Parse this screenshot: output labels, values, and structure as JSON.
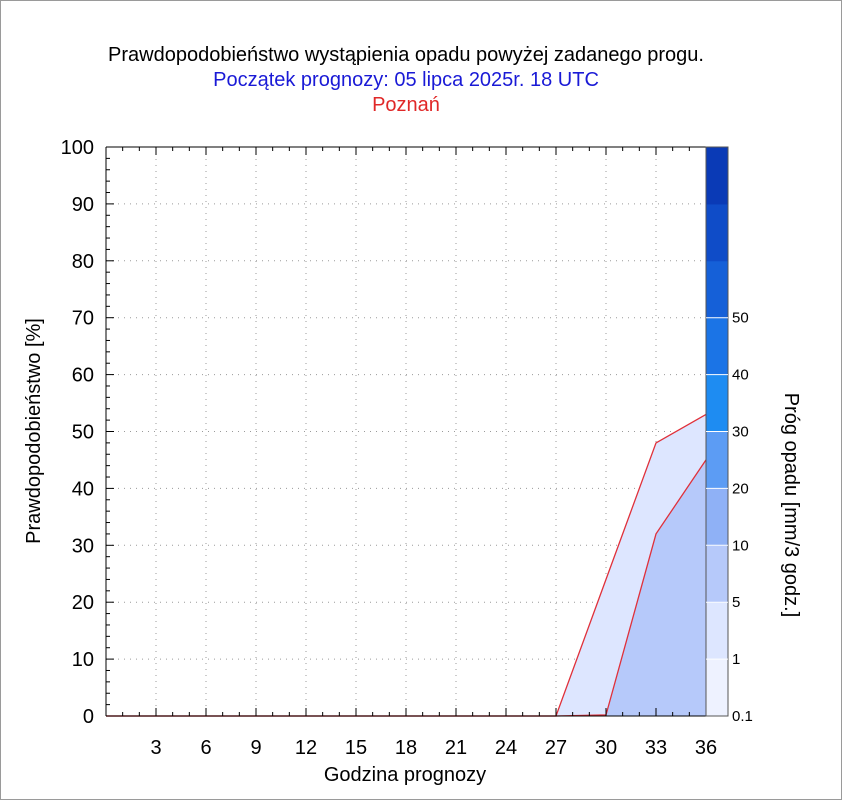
{
  "titles": {
    "line1": "Prawdopodobieństwo wystąpienia opadu powyżej zadanego progu.",
    "line2": "Początek prognozy: 05 lipca 2025r. 18 UTC",
    "line3": "Poznań"
  },
  "chart_data": {
    "type": "area",
    "xlabel": "Godzina prognozy",
    "ylabel": "Prawdopodobieństwo [%]",
    "xlim": [
      0,
      36
    ],
    "ylim": [
      0,
      100
    ],
    "x_ticks": [
      3,
      6,
      9,
      12,
      15,
      18,
      21,
      24,
      27,
      30,
      33,
      36
    ],
    "y_ticks": [
      0,
      10,
      20,
      30,
      40,
      50,
      60,
      70,
      80,
      90,
      100
    ],
    "grid": true,
    "x": [
      0,
      3,
      6,
      9,
      12,
      15,
      18,
      21,
      24,
      27,
      30,
      33,
      36
    ],
    "series": [
      {
        "name": "0.1",
        "color": "#dde6ff",
        "values": [
          0,
          0,
          0,
          0,
          0,
          0,
          0,
          0,
          0,
          0,
          24,
          48,
          53
        ]
      },
      {
        "name": "1",
        "color": "#b6c9fa",
        "values": [
          0,
          0,
          0,
          0,
          0,
          0,
          0,
          0,
          0,
          0,
          0.2,
          32,
          45
        ]
      }
    ],
    "colorbar": {
      "label": "Próg opadu [mm/3 godz.]",
      "labels": [
        "0.1",
        "1",
        "5",
        "10",
        "20",
        "30",
        "40",
        "50"
      ],
      "colors": [
        "#eef2ff",
        "#dde6ff",
        "#b6c9fa",
        "#8fb1f6",
        "#5c9cf4",
        "#1e8cf2",
        "#1b74e6",
        "#1560d8",
        "#0f4cc8",
        "#0a3ab6"
      ]
    }
  }
}
